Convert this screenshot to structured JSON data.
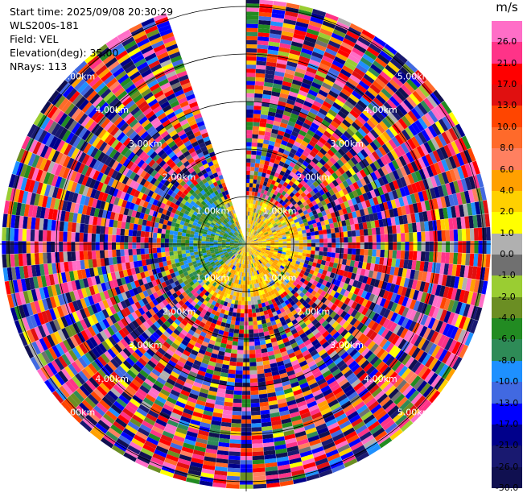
{
  "info": {
    "start_time": "Start time: 2025/09/08 20:30:29",
    "instrument": "WLS200s-181",
    "field": "Field: VEL",
    "elevation": "Elevation(deg): 35.00",
    "nrays": "NRays: 113"
  },
  "colorbar": {
    "unit": "m/s",
    "ticks": [
      "26.0",
      "21.0",
      "17.0",
      "13.0",
      "10.0",
      "8.0",
      "6.0",
      "4.0",
      "2.0",
      "1.0",
      "0.0",
      "-1.0",
      "-2.0",
      "-4.0",
      "-6.0",
      "-8.0",
      "-10.0",
      "-13.0",
      "-17.0",
      "-21.0",
      "-26.0",
      "-30.0"
    ],
    "colors": [
      "#ff6ec7",
      "#ff3388",
      "#ff0000",
      "#e01010",
      "#ff4500",
      "#ff6a2a",
      "#ff8060",
      "#ffa000",
      "#ffd000",
      "#ffff00",
      "#b0b0b0",
      "#707070",
      "#9acd32",
      "#6b8e23",
      "#228b22",
      "#2e8b57",
      "#1e90ff",
      "#4169e1",
      "#0000ff",
      "#00008b",
      "#191970",
      "#101050"
    ]
  },
  "chart_data": {
    "type": "ppi",
    "title": "",
    "field": "VEL",
    "unit": "m/s",
    "elevation_deg": 35.0,
    "nrays": 113,
    "range_rings_km": [
      1,
      2,
      3,
      4,
      5
    ],
    "ring_labels": [
      "1.00km",
      "2.00km",
      "3.00km",
      "4.00km",
      "5.00km"
    ],
    "color_levels": [
      -30.0,
      -26.0,
      -21.0,
      -17.0,
      -13.0,
      -10.0,
      -8.0,
      -6.0,
      -4.0,
      -2.0,
      -1.0,
      0.0,
      1.0,
      2.0,
      4.0,
      6.0,
      8.0,
      10.0,
      13.0,
      17.0,
      21.0,
      26.0
    ],
    "max_range_km": 5.15,
    "missing_sector_azimuth_deg": [
      340,
      360
    ],
    "near_field_summary": "mostly 0 to 6 m/s (yellow/orange) within 1 km east and south, far field noisy"
  }
}
